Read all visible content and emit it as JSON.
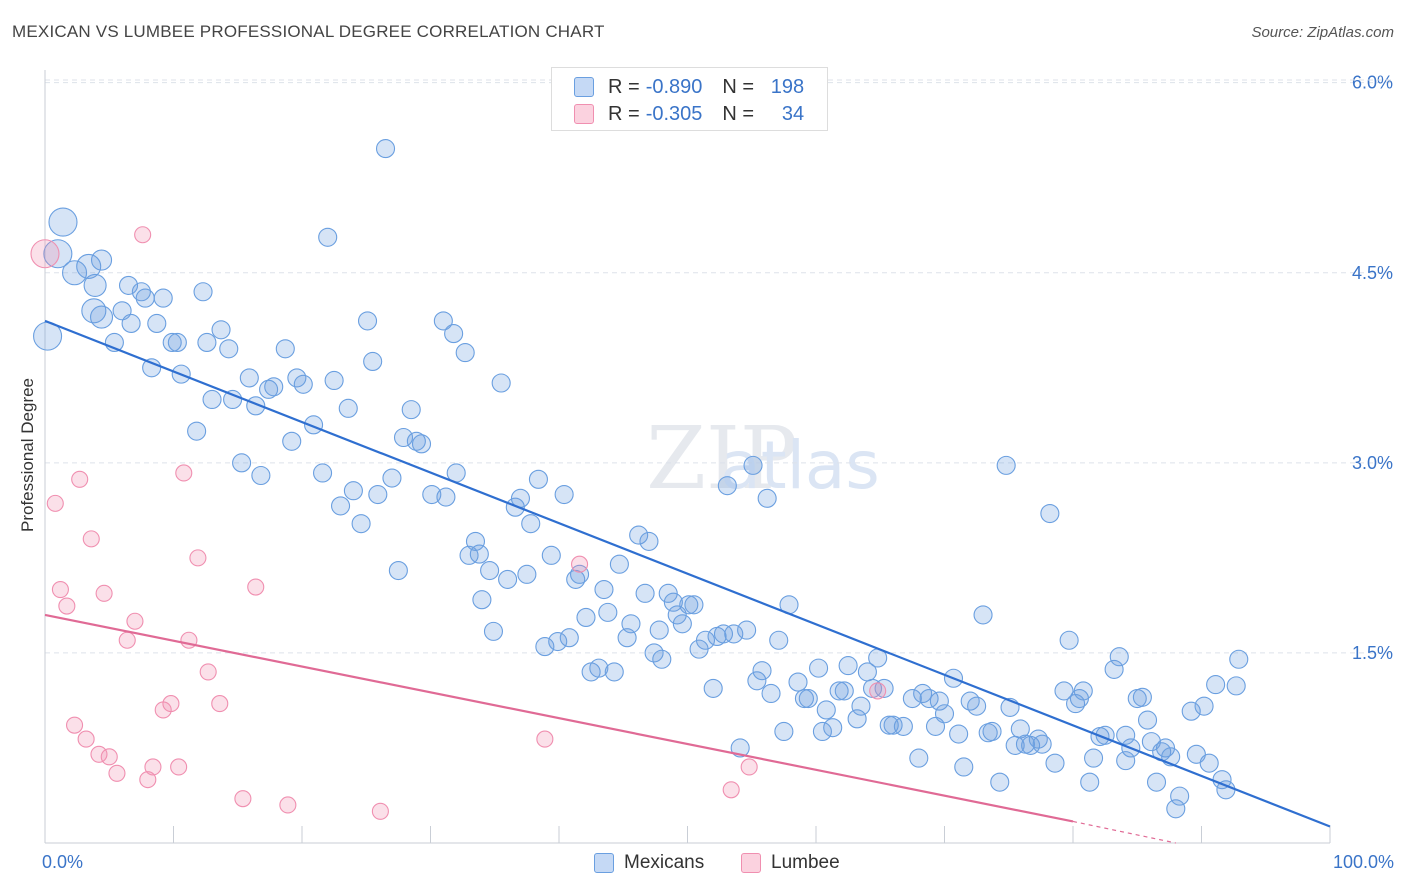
{
  "title": "MEXICAN VS LUMBEE PROFESSIONAL DEGREE CORRELATION CHART",
  "source": "Source: ZipAtlas.com",
  "watermark": "ZIPatlas",
  "legend": {
    "rows": [
      {
        "r_label": "R =",
        "r_value": "-0.890",
        "n_label": "N =",
        "n_value": "198",
        "color": "#6a9fe0"
      },
      {
        "r_label": "R =",
        "r_value": "-0.305",
        "n_label": "N =",
        "n_value": "34",
        "color": "#f08fb0"
      }
    ]
  },
  "bottom_legend": [
    {
      "label": "Mexicans",
      "color": "#6a9fe0"
    },
    {
      "label": "Lumbee",
      "color": "#f08fb0"
    }
  ],
  "chart_data": {
    "type": "scatter",
    "title": "MEXICAN VS LUMBEE PROFESSIONAL DEGREE CORRELATION CHART",
    "xlabel": "",
    "ylabel": "Professional Degree",
    "xlim": [
      0,
      100
    ],
    "ylim": [
      0,
      6.1
    ],
    "x_tick_labels": [
      "0.0%",
      "100.0%"
    ],
    "y_ticks": [
      1.5,
      3.0,
      4.5,
      6.0
    ],
    "y_tick_labels": [
      "1.5%",
      "3.0%",
      "4.5%",
      "6.0%"
    ],
    "grid": true,
    "series": [
      {
        "name": "Mexicans",
        "color": "#6a9fe0",
        "trend": {
          "x": [
            0,
            100
          ],
          "y": [
            4.12,
            0.13
          ]
        },
        "points": [
          [
            0.2,
            4.0,
            14
          ],
          [
            1.0,
            4.65,
            14
          ],
          [
            1.4,
            4.9,
            14
          ],
          [
            2.3,
            4.5,
            12
          ],
          [
            3.4,
            4.55,
            12
          ],
          [
            3.8,
            4.2,
            12
          ],
          [
            3.9,
            4.4,
            11
          ],
          [
            4.4,
            4.6,
            10
          ],
          [
            4.4,
            4.15,
            11
          ],
          [
            5.4,
            3.95,
            9
          ],
          [
            6.0,
            4.2,
            9
          ],
          [
            6.5,
            4.4,
            9
          ],
          [
            6.7,
            4.1,
            9
          ],
          [
            7.5,
            4.35,
            9
          ],
          [
            7.8,
            4.3,
            9
          ],
          [
            8.3,
            3.75,
            9
          ],
          [
            8.7,
            4.1,
            9
          ],
          [
            9.2,
            4.3,
            9
          ],
          [
            9.9,
            3.95,
            9
          ],
          [
            10.3,
            3.95,
            9
          ],
          [
            10.6,
            3.7,
            9
          ],
          [
            11.8,
            3.25,
            9
          ],
          [
            12.3,
            4.35,
            9
          ],
          [
            12.6,
            3.95,
            9
          ],
          [
            13.0,
            3.5,
            9
          ],
          [
            13.7,
            4.05,
            9
          ],
          [
            14.3,
            3.9,
            9
          ],
          [
            14.6,
            3.5,
            9
          ],
          [
            15.3,
            3.0,
            9
          ],
          [
            15.9,
            3.67,
            9
          ],
          [
            16.4,
            3.45,
            9
          ],
          [
            16.8,
            2.9,
            9
          ],
          [
            17.4,
            3.58,
            9
          ],
          [
            17.8,
            3.6,
            9
          ],
          [
            18.7,
            3.9,
            9
          ],
          [
            19.2,
            3.17,
            9
          ],
          [
            19.6,
            3.67,
            9
          ],
          [
            20.1,
            3.62,
            9
          ],
          [
            20.9,
            3.3,
            9
          ],
          [
            21.6,
            2.92,
            9
          ],
          [
            22.0,
            4.78,
            9
          ],
          [
            22.5,
            3.65,
            9
          ],
          [
            23.0,
            2.66,
            9
          ],
          [
            23.6,
            3.43,
            9
          ],
          [
            24.0,
            2.78,
            9
          ],
          [
            24.6,
            2.52,
            9
          ],
          [
            25.1,
            4.12,
            9
          ],
          [
            25.5,
            3.8,
            9
          ],
          [
            25.9,
            2.75,
            9
          ],
          [
            26.5,
            5.48,
            9
          ],
          [
            27.0,
            2.88,
            9
          ],
          [
            27.5,
            2.15,
            9
          ],
          [
            27.9,
            3.2,
            9
          ],
          [
            28.5,
            3.42,
            9
          ],
          [
            28.9,
            3.17,
            9
          ],
          [
            29.3,
            3.15,
            9
          ],
          [
            30.1,
            2.75,
            9
          ],
          [
            31.0,
            4.12,
            9
          ],
          [
            31.2,
            2.73,
            9
          ],
          [
            31.8,
            4.02,
            9
          ],
          [
            32.0,
            2.92,
            9
          ],
          [
            32.7,
            3.87,
            9
          ],
          [
            33.0,
            2.27,
            9
          ],
          [
            33.5,
            2.38,
            9
          ],
          [
            34.0,
            1.92,
            9
          ],
          [
            34.6,
            2.15,
            9
          ],
          [
            34.9,
            1.67,
            9
          ],
          [
            35.5,
            3.63,
            9
          ],
          [
            36.0,
            2.08,
            9
          ],
          [
            36.6,
            2.65,
            9
          ],
          [
            37.0,
            2.72,
            9
          ],
          [
            37.5,
            2.12,
            9
          ],
          [
            37.8,
            2.52,
            9
          ],
          [
            38.4,
            2.87,
            9
          ],
          [
            38.9,
            1.55,
            9
          ],
          [
            39.4,
            2.27,
            9
          ],
          [
            39.9,
            1.59,
            9
          ],
          [
            40.4,
            2.75,
            9
          ],
          [
            40.8,
            1.62,
            9
          ],
          [
            41.3,
            2.08,
            9
          ],
          [
            41.6,
            2.12,
            9
          ],
          [
            42.1,
            1.78,
            9
          ],
          [
            42.5,
            1.35,
            9
          ],
          [
            43.1,
            1.38,
            9
          ],
          [
            43.5,
            2.0,
            9
          ],
          [
            43.8,
            1.82,
            9
          ],
          [
            44.3,
            1.35,
            9
          ],
          [
            44.7,
            2.2,
            9
          ],
          [
            45.3,
            1.62,
            9
          ],
          [
            45.6,
            1.73,
            9
          ],
          [
            46.2,
            2.43,
            9
          ],
          [
            46.7,
            1.97,
            9
          ],
          [
            47.0,
            2.38,
            9
          ],
          [
            47.4,
            1.5,
            9
          ],
          [
            47.8,
            1.68,
            9
          ],
          [
            48.5,
            1.97,
            9
          ],
          [
            48.9,
            1.9,
            9
          ],
          [
            49.2,
            1.8,
            9
          ],
          [
            49.6,
            1.73,
            9
          ],
          [
            50.1,
            1.88,
            9
          ],
          [
            50.5,
            1.88,
            9
          ],
          [
            50.9,
            1.53,
            9
          ],
          [
            51.4,
            1.6,
            9
          ],
          [
            52.0,
            1.22,
            9
          ],
          [
            52.3,
            1.63,
            9
          ],
          [
            52.8,
            1.65,
            9
          ],
          [
            53.1,
            2.82,
            9
          ],
          [
            53.6,
            1.65,
            9
          ],
          [
            54.1,
            0.75,
            9
          ],
          [
            54.6,
            1.68,
            9
          ],
          [
            55.1,
            2.98,
            9
          ],
          [
            55.4,
            1.28,
            9
          ],
          [
            55.8,
            1.36,
            9
          ],
          [
            56.5,
            1.18,
            9
          ],
          [
            57.1,
            1.6,
            9
          ],
          [
            57.5,
            0.88,
            9
          ],
          [
            57.9,
            1.88,
            9
          ],
          [
            58.6,
            1.27,
            9
          ],
          [
            59.1,
            1.14,
            9
          ],
          [
            59.4,
            1.14,
            9
          ],
          [
            60.2,
            1.38,
            9
          ],
          [
            60.5,
            0.88,
            9
          ],
          [
            60.8,
            1.05,
            9
          ],
          [
            61.3,
            0.91,
            9
          ],
          [
            61.8,
            1.2,
            9
          ],
          [
            62.2,
            1.2,
            9
          ],
          [
            62.5,
            1.4,
            9
          ],
          [
            63.2,
            0.98,
            9
          ],
          [
            63.5,
            1.08,
            9
          ],
          [
            64.0,
            1.35,
            9
          ],
          [
            64.4,
            1.22,
            9
          ],
          [
            64.8,
            1.46,
            9
          ],
          [
            65.3,
            1.22,
            9
          ],
          [
            65.7,
            0.93,
            9
          ],
          [
            66.0,
            0.93,
            9
          ],
          [
            66.8,
            0.92,
            9
          ],
          [
            67.5,
            1.14,
            9
          ],
          [
            68.0,
            0.67,
            9
          ],
          [
            68.3,
            1.18,
            9
          ],
          [
            68.8,
            1.14,
            9
          ],
          [
            69.3,
            0.92,
            9
          ],
          [
            69.6,
            1.12,
            9
          ],
          [
            70.0,
            1.02,
            9
          ],
          [
            70.7,
            1.3,
            9
          ],
          [
            71.1,
            0.86,
            9
          ],
          [
            71.5,
            0.6,
            9
          ],
          [
            72.0,
            1.12,
            9
          ],
          [
            72.5,
            1.08,
            9
          ],
          [
            73.0,
            1.8,
            9
          ],
          [
            73.4,
            0.87,
            9
          ],
          [
            73.7,
            0.88,
            9
          ],
          [
            74.3,
            0.48,
            9
          ],
          [
            74.8,
            2.98,
            9
          ],
          [
            75.1,
            1.07,
            9
          ],
          [
            75.5,
            0.77,
            9
          ],
          [
            75.9,
            0.9,
            9
          ],
          [
            76.3,
            0.78,
            9
          ],
          [
            76.7,
            0.77,
            9
          ],
          [
            77.3,
            0.82,
            9
          ],
          [
            77.6,
            0.78,
            9
          ],
          [
            78.2,
            2.6,
            9
          ],
          [
            78.6,
            0.63,
            9
          ],
          [
            79.3,
            1.2,
            9
          ],
          [
            79.7,
            1.6,
            9
          ],
          [
            80.2,
            1.1,
            9
          ],
          [
            80.5,
            1.14,
            9
          ],
          [
            80.8,
            1.2,
            9
          ],
          [
            81.3,
            0.48,
            9
          ],
          [
            81.6,
            0.67,
            9
          ],
          [
            82.1,
            0.84,
            9
          ],
          [
            82.5,
            0.85,
            9
          ],
          [
            83.2,
            1.37,
            9
          ],
          [
            83.6,
            1.47,
            9
          ],
          [
            84.1,
            0.65,
            9
          ],
          [
            84.5,
            0.75,
            9
          ],
          [
            85.0,
            1.14,
            9
          ],
          [
            85.4,
            1.15,
            9
          ],
          [
            85.8,
            0.97,
            9
          ],
          [
            86.1,
            0.8,
            9
          ],
          [
            86.5,
            0.48,
            9
          ],
          [
            86.9,
            0.72,
            9
          ],
          [
            87.2,
            0.75,
            9
          ],
          [
            87.6,
            0.68,
            9
          ],
          [
            88.0,
            0.27,
            9
          ],
          [
            88.3,
            0.37,
            9
          ],
          [
            89.2,
            1.04,
            9
          ],
          [
            89.6,
            0.7,
            9
          ],
          [
            90.2,
            1.08,
            9
          ],
          [
            90.6,
            0.63,
            9
          ],
          [
            91.1,
            1.25,
            9
          ],
          [
            91.6,
            0.5,
            9
          ],
          [
            91.9,
            0.42,
            9
          ],
          [
            92.7,
            1.24,
            9
          ],
          [
            92.9,
            1.45,
            9
          ],
          [
            84.1,
            0.85,
            9
          ],
          [
            56.2,
            2.72,
            9
          ],
          [
            33.8,
            2.28,
            9
          ],
          [
            48.0,
            1.45,
            9
          ]
        ]
      },
      {
        "name": "Lumbee",
        "color": "#f08fb0",
        "trend": {
          "x": [
            0,
            80
          ],
          "y": [
            1.8,
            0.17
          ]
        },
        "trend_dashed_to": {
          "x": 88,
          "y": 0.0
        },
        "points": [
          [
            0.0,
            4.65,
            14
          ],
          [
            0.8,
            2.68,
            8
          ],
          [
            1.2,
            2.0,
            8
          ],
          [
            1.7,
            1.87,
            8
          ],
          [
            2.3,
            0.93,
            8
          ],
          [
            2.7,
            2.87,
            8
          ],
          [
            3.2,
            0.82,
            8
          ],
          [
            3.6,
            2.4,
            8
          ],
          [
            4.2,
            0.7,
            8
          ],
          [
            4.6,
            1.97,
            8
          ],
          [
            5.0,
            0.68,
            8
          ],
          [
            5.6,
            0.55,
            8
          ],
          [
            6.4,
            1.6,
            8
          ],
          [
            7.0,
            1.75,
            8
          ],
          [
            7.6,
            4.8,
            8
          ],
          [
            8.0,
            0.5,
            8
          ],
          [
            8.4,
            0.6,
            8
          ],
          [
            9.2,
            1.05,
            8
          ],
          [
            9.8,
            1.1,
            8
          ],
          [
            10.4,
            0.6,
            8
          ],
          [
            10.8,
            2.92,
            8
          ],
          [
            11.2,
            1.6,
            8
          ],
          [
            11.9,
            2.25,
            8
          ],
          [
            12.7,
            1.35,
            8
          ],
          [
            13.6,
            1.1,
            8
          ],
          [
            15.4,
            0.35,
            8
          ],
          [
            16.4,
            2.02,
            8
          ],
          [
            18.9,
            0.3,
            8
          ],
          [
            26.1,
            0.25,
            8
          ],
          [
            38.9,
            0.82,
            8
          ],
          [
            41.6,
            2.2,
            8
          ],
          [
            53.4,
            0.42,
            8
          ],
          [
            54.8,
            0.6,
            8
          ],
          [
            64.8,
            1.2,
            8
          ]
        ]
      }
    ]
  }
}
